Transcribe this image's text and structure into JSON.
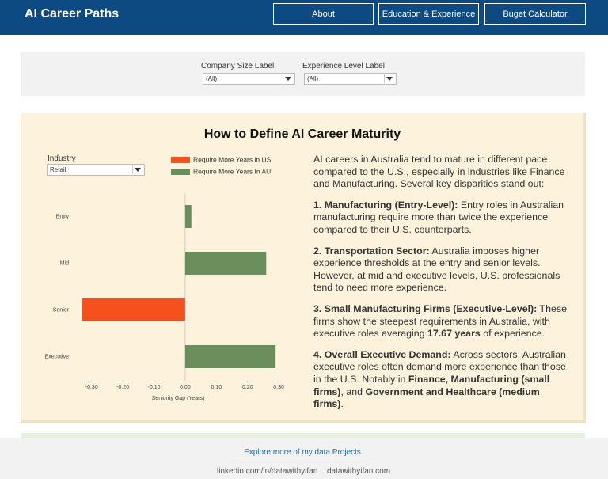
{
  "header": {
    "title": "AI Career Paths",
    "nav": [
      "About",
      "Education & Experience",
      "Buget Calculator"
    ]
  },
  "filters": [
    {
      "label": "Company Size Label",
      "value": "(All)"
    },
    {
      "label": "Experience Level Label",
      "value": "(All)"
    }
  ],
  "panel": {
    "title": "How to Define AI Career Maturity",
    "industry": {
      "label": "Industry",
      "value": "Retail"
    },
    "paragraphs": [
      [
        {
          "text": "AI careers in Australia tend to mature in different pace compared to the U.S., especially in industries like Finance and Manufacturing. Several key disparities stand out:",
          "bold": false
        }
      ],
      [
        {
          "text": "1. Manufacturing (Entry-Level):",
          "bold": true
        },
        {
          "text": " Entry roles in Australian manufacturing require more than twice the experience compared to their U.S. counterparts.",
          "bold": false
        }
      ],
      [
        {
          "text": "2. Transportation Sector:",
          "bold": true
        },
        {
          "text": " Australia imposes higher experience thresholds at the entry and senior levels. However, at mid and executive levels, U.S. professionals tend to need more experience.",
          "bold": false
        }
      ],
      [
        {
          "text": "3. Small Manufacturing Firms (Executive-Level):",
          "bold": true
        },
        {
          "text": " These firms show the steepest requirements in Australia, with executive roles averaging ",
          "bold": false
        },
        {
          "text": "17.67 years",
          "bold": true
        },
        {
          "text": " of experience.",
          "bold": false
        }
      ],
      [
        {
          "text": "4. Overall Executive Demand:",
          "bold": true
        },
        {
          "text": " Across sectors, Australian executive roles often demand more experience than those in the U.S. Notably in ",
          "bold": false
        },
        {
          "text": "Finance, Manufacturing (small firms)",
          "bold": true
        },
        {
          "text": ", and ",
          "bold": false
        },
        {
          "text": "Government and Healthcare (medium firms)",
          "bold": true
        },
        {
          "text": ".",
          "bold": false
        }
      ]
    ]
  },
  "chart_data": {
    "type": "hbar",
    "x_label": "Seniority Gap (Years)",
    "categories": [
      "Entry",
      "Mid",
      "Senior",
      "Executive"
    ],
    "values": [
      0.02,
      0.26,
      -0.33,
      0.29
    ],
    "legend": [
      {
        "name": "Require More Years in US",
        "color": "#f4511e"
      },
      {
        "name": "Require More Years In AU",
        "color": "#6b8f5c"
      }
    ],
    "xlim": [
      -0.34,
      0.31
    ],
    "xticks": [
      {
        "value": -0.3,
        "label": "-0.30"
      },
      {
        "value": -0.2,
        "label": "-0.20"
      },
      {
        "value": -0.1,
        "label": "-0.10"
      },
      {
        "value": 0,
        "label": "0.00"
      },
      {
        "value": 0.1,
        "label": "0.10"
      },
      {
        "value": 0.2,
        "label": "0.20"
      },
      {
        "value": 0.3,
        "label": "0.30"
      }
    ]
  },
  "footer": {
    "link": "Explore more of my data Projects",
    "links": [
      "linkedin.com/in/datawithyifan",
      "datawithyifan.com"
    ]
  }
}
